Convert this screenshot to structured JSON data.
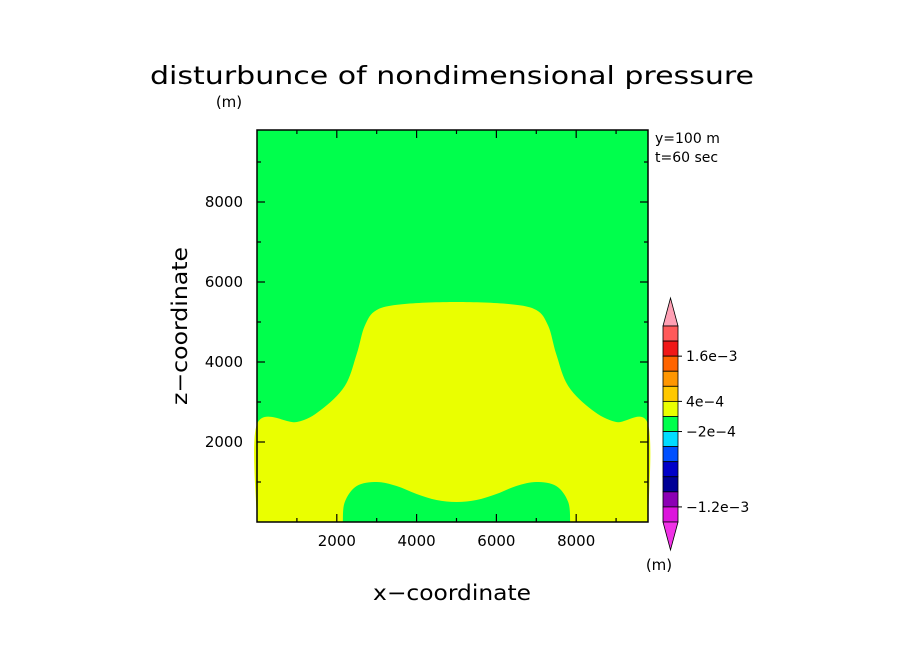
{
  "chart_data": {
    "type": "heatmap",
    "title": "disturbunce of nondimensional pressure",
    "unit_label": "(m)",
    "annotations": [
      "y=100 m",
      "t=60 sec"
    ],
    "xlabel": "x−coordinate",
    "ylabel": "z−coordinate",
    "xlim": [
      0,
      9800
    ],
    "ylim": [
      0,
      9800
    ],
    "x_ticks": [
      2000,
      4000,
      6000,
      8000
    ],
    "y_ticks": [
      2000,
      4000,
      6000,
      8000
    ],
    "x_tick_labels": [
      "2000",
      "4000",
      "6000",
      "8000"
    ],
    "y_tick_labels": [
      "2000",
      "4000",
      "6000",
      "8000"
    ],
    "background_band_color": "#00ff4c",
    "regions": [
      {
        "name": "positive-anomaly",
        "color": "#eaff00",
        "outline": [
          [
            0,
            0
          ],
          [
            0,
            2450
          ],
          [
            1000,
            2500
          ],
          [
            1600,
            2800
          ],
          [
            2200,
            3400
          ],
          [
            2500,
            4200
          ],
          [
            2700,
            4900
          ],
          [
            3000,
            5300
          ],
          [
            3700,
            5450
          ],
          [
            5000,
            5500
          ],
          [
            6300,
            5450
          ],
          [
            7000,
            5300
          ],
          [
            7300,
            4900
          ],
          [
            7500,
            4200
          ],
          [
            7800,
            3400
          ],
          [
            8400,
            2800
          ],
          [
            9000,
            2500
          ],
          [
            9800,
            2450
          ],
          [
            9800,
            0
          ]
        ]
      },
      {
        "name": "near-zero-core",
        "color": "#00ff4c",
        "outline": [
          [
            2150,
            0
          ],
          [
            2200,
            500
          ],
          [
            2500,
            900
          ],
          [
            3000,
            1000
          ],
          [
            3500,
            900
          ],
          [
            4000,
            700
          ],
          [
            4500,
            550
          ],
          [
            5000,
            500
          ],
          [
            5500,
            550
          ],
          [
            6000,
            700
          ],
          [
            6500,
            900
          ],
          [
            7000,
            1000
          ],
          [
            7500,
            900
          ],
          [
            7800,
            500
          ],
          [
            7850,
            0
          ]
        ]
      }
    ],
    "colorbar": {
      "unit_label": "(m)",
      "levels": [
        {
          "color": "#ffa0b4"
        },
        {
          "color": "#ff5a5a"
        },
        {
          "color": "#f01818"
        },
        {
          "color": "#ff6400"
        },
        {
          "color": "#ff9600"
        },
        {
          "color": "#ffc800"
        },
        {
          "color": "#eaff00"
        },
        {
          "color": "#00ff4c"
        },
        {
          "color": "#00dcff"
        },
        {
          "color": "#0050ff"
        },
        {
          "color": "#0000c8"
        },
        {
          "color": "#000096"
        },
        {
          "color": "#8c00b4"
        },
        {
          "color": "#dc14dc"
        },
        {
          "color": "#f032e6"
        }
      ],
      "labels": [
        {
          "text": "1.6e−3",
          "after_level": 2
        },
        {
          "text": "4e−4",
          "after_level": 5
        },
        {
          "text": "−2e−4",
          "after_level": 7
        },
        {
          "text": "−1.2e−3",
          "after_level": 12
        }
      ]
    }
  }
}
